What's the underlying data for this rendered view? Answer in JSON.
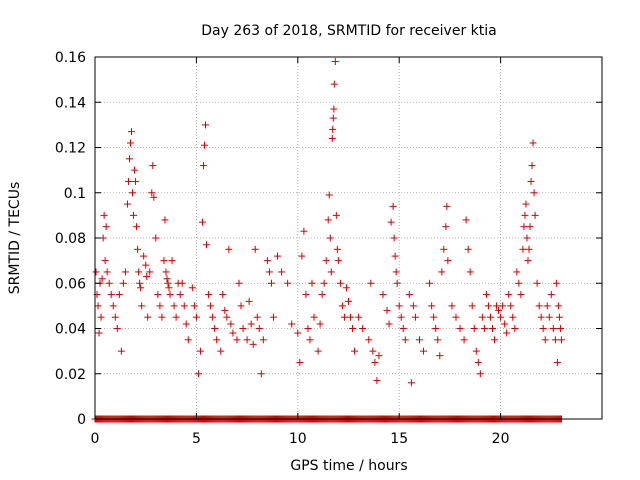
{
  "chart_data": {
    "type": "scatter",
    "title": "Day 263 of 2018, SRMTID for receiver ktia",
    "xlabel": "GPS time / hours",
    "ylabel": "SRMTID / TECUs",
    "xlim": [
      0,
      25
    ],
    "ylim": [
      0,
      0.16
    ],
    "xticks": [
      0,
      5,
      10,
      15,
      20
    ],
    "xtick_labels": [
      "0",
      "5",
      "10",
      "15",
      "20"
    ],
    "yticks": [
      0,
      0.02,
      0.04,
      0.06,
      0.08,
      0.1,
      0.12,
      0.14,
      0.16
    ],
    "ytick_labels": [
      "0",
      "0.02",
      "0.04",
      "0.06",
      "0.08",
      "0.1",
      "0.12",
      "0.14",
      "0.16"
    ],
    "grid": true,
    "marker": "+",
    "color": "#d40000",
    "series": [
      {
        "name": "SRMTID",
        "points": [
          [
            0.05,
            0.065
          ],
          [
            0.1,
            0.055
          ],
          [
            0.15,
            0.05
          ],
          [
            0.2,
            0.038
          ],
          [
            0.25,
            0.06
          ],
          [
            0.3,
            0.045
          ],
          [
            0.35,
            0.062
          ],
          [
            0.4,
            0.08
          ],
          [
            0.45,
            0.09
          ],
          [
            0.5,
            0.07
          ],
          [
            0.55,
            0.085
          ],
          [
            0.6,
            0.065
          ],
          [
            0.7,
            0.06
          ],
          [
            0.8,
            0.055
          ],
          [
            0.9,
            0.05
          ],
          [
            1.0,
            0.045
          ],
          [
            1.1,
            0.04
          ],
          [
            1.2,
            0.055
          ],
          [
            1.3,
            0.03
          ],
          [
            1.4,
            0.06
          ],
          [
            1.5,
            0.065
          ],
          [
            1.6,
            0.095
          ],
          [
            1.65,
            0.105
          ],
          [
            1.7,
            0.115
          ],
          [
            1.75,
            0.122
          ],
          [
            1.8,
            0.127
          ],
          [
            1.85,
            0.1
          ],
          [
            1.9,
            0.09
          ],
          [
            1.95,
            0.11
          ],
          [
            2.0,
            0.105
          ],
          [
            2.05,
            0.085
          ],
          [
            2.1,
            0.075
          ],
          [
            2.15,
            0.065
          ],
          [
            2.2,
            0.06
          ],
          [
            2.25,
            0.058
          ],
          [
            2.3,
            0.05
          ],
          [
            2.4,
            0.072
          ],
          [
            2.5,
            0.068
          ],
          [
            2.55,
            0.063
          ],
          [
            2.6,
            0.045
          ],
          [
            2.7,
            0.065
          ],
          [
            2.8,
            0.1
          ],
          [
            2.85,
            0.112
          ],
          [
            2.9,
            0.098
          ],
          [
            3.0,
            0.08
          ],
          [
            3.1,
            0.055
          ],
          [
            3.2,
            0.05
          ],
          [
            3.3,
            0.045
          ],
          [
            3.4,
            0.07
          ],
          [
            3.45,
            0.088
          ],
          [
            3.5,
            0.065
          ],
          [
            3.55,
            0.062
          ],
          [
            3.6,
            0.06
          ],
          [
            3.65,
            0.058
          ],
          [
            3.7,
            0.055
          ],
          [
            3.8,
            0.07
          ],
          [
            3.9,
            0.05
          ],
          [
            4.0,
            0.045
          ],
          [
            4.1,
            0.06
          ],
          [
            4.2,
            0.055
          ],
          [
            4.3,
            0.06
          ],
          [
            4.4,
            0.05
          ],
          [
            4.5,
            0.042
          ],
          [
            4.6,
            0.035
          ],
          [
            4.8,
            0.058
          ],
          [
            4.9,
            0.05
          ],
          [
            5.0,
            0.045
          ],
          [
            5.1,
            0.02
          ],
          [
            5.2,
            0.03
          ],
          [
            5.3,
            0.087
          ],
          [
            5.35,
            0.112
          ],
          [
            5.4,
            0.121
          ],
          [
            5.45,
            0.13
          ],
          [
            5.5,
            0.077
          ],
          [
            5.6,
            0.055
          ],
          [
            5.7,
            0.05
          ],
          [
            5.8,
            0.045
          ],
          [
            5.9,
            0.04
          ],
          [
            6.0,
            0.035
          ],
          [
            6.2,
            0.03
          ],
          [
            6.3,
            0.055
          ],
          [
            6.4,
            0.048
          ],
          [
            6.5,
            0.045
          ],
          [
            6.6,
            0.075
          ],
          [
            6.7,
            0.042
          ],
          [
            6.8,
            0.038
          ],
          [
            7.0,
            0.035
          ],
          [
            7.1,
            0.06
          ],
          [
            7.2,
            0.05
          ],
          [
            7.3,
            0.04
          ],
          [
            7.5,
            0.035
          ],
          [
            7.6,
            0.052
          ],
          [
            7.7,
            0.042
          ],
          [
            7.8,
            0.033
          ],
          [
            7.9,
            0.075
          ],
          [
            8.0,
            0.045
          ],
          [
            8.1,
            0.04
          ],
          [
            8.2,
            0.02
          ],
          [
            8.3,
            0.035
          ],
          [
            8.5,
            0.07
          ],
          [
            8.6,
            0.065
          ],
          [
            8.7,
            0.06
          ],
          [
            8.8,
            0.045
          ],
          [
            9.0,
            0.072
          ],
          [
            9.2,
            0.065
          ],
          [
            9.5,
            0.06
          ],
          [
            9.7,
            0.042
          ],
          [
            10.0,
            0.038
          ],
          [
            10.1,
            0.025
          ],
          [
            10.2,
            0.072
          ],
          [
            10.3,
            0.083
          ],
          [
            10.4,
            0.055
          ],
          [
            10.5,
            0.04
          ],
          [
            10.6,
            0.035
          ],
          [
            10.7,
            0.06
          ],
          [
            10.8,
            0.045
          ],
          [
            11.0,
            0.03
          ],
          [
            11.1,
            0.042
          ],
          [
            11.2,
            0.055
          ],
          [
            11.3,
            0.06
          ],
          [
            11.4,
            0.07
          ],
          [
            11.5,
            0.088
          ],
          [
            11.55,
            0.099
          ],
          [
            11.6,
            0.08
          ],
          [
            11.65,
            0.065
          ],
          [
            11.7,
            0.124
          ],
          [
            11.72,
            0.128
          ],
          [
            11.75,
            0.133
          ],
          [
            11.78,
            0.137
          ],
          [
            11.8,
            0.148
          ],
          [
            11.85,
            0.158
          ],
          [
            11.9,
            0.09
          ],
          [
            11.95,
            0.075
          ],
          [
            12.0,
            0.07
          ],
          [
            12.1,
            0.06
          ],
          [
            12.2,
            0.05
          ],
          [
            12.3,
            0.045
          ],
          [
            12.4,
            0.058
          ],
          [
            12.5,
            0.052
          ],
          [
            12.6,
            0.045
          ],
          [
            12.7,
            0.04
          ],
          [
            12.8,
            0.03
          ],
          [
            13.0,
            0.045
          ],
          [
            13.2,
            0.04
          ],
          [
            13.5,
            0.035
          ],
          [
            13.6,
            0.06
          ],
          [
            13.7,
            0.03
          ],
          [
            13.8,
            0.025
          ],
          [
            13.9,
            0.017
          ],
          [
            14.0,
            0.028
          ],
          [
            14.2,
            0.055
          ],
          [
            14.4,
            0.048
          ],
          [
            14.5,
            0.042
          ],
          [
            14.6,
            0.087
          ],
          [
            14.7,
            0.094
          ],
          [
            14.75,
            0.08
          ],
          [
            14.8,
            0.072
          ],
          [
            14.85,
            0.065
          ],
          [
            14.9,
            0.06
          ],
          [
            15.0,
            0.05
          ],
          [
            15.1,
            0.045
          ],
          [
            15.2,
            0.04
          ],
          [
            15.3,
            0.035
          ],
          [
            15.5,
            0.055
          ],
          [
            15.6,
            0.016
          ],
          [
            15.7,
            0.05
          ],
          [
            15.8,
            0.045
          ],
          [
            16.0,
            0.035
          ],
          [
            16.2,
            0.03
          ],
          [
            16.5,
            0.06
          ],
          [
            16.6,
            0.05
          ],
          [
            16.7,
            0.045
          ],
          [
            16.8,
            0.04
          ],
          [
            16.9,
            0.035
          ],
          [
            17.0,
            0.028
          ],
          [
            17.1,
            0.065
          ],
          [
            17.2,
            0.075
          ],
          [
            17.3,
            0.085
          ],
          [
            17.35,
            0.094
          ],
          [
            17.4,
            0.07
          ],
          [
            17.6,
            0.05
          ],
          [
            17.8,
            0.045
          ],
          [
            18.0,
            0.04
          ],
          [
            18.2,
            0.035
          ],
          [
            18.3,
            0.088
          ],
          [
            18.4,
            0.075
          ],
          [
            18.5,
            0.065
          ],
          [
            18.6,
            0.05
          ],
          [
            18.7,
            0.04
          ],
          [
            18.8,
            0.03
          ],
          [
            18.9,
            0.025
          ],
          [
            19.0,
            0.02
          ],
          [
            19.1,
            0.045
          ],
          [
            19.2,
            0.04
          ],
          [
            19.3,
            0.055
          ],
          [
            19.4,
            0.05
          ],
          [
            19.5,
            0.045
          ],
          [
            19.6,
            0.04
          ],
          [
            19.7,
            0.035
          ],
          [
            19.8,
            0.05
          ],
          [
            19.9,
            0.048
          ],
          [
            20.0,
            0.045
          ],
          [
            20.1,
            0.05
          ],
          [
            20.2,
            0.042
          ],
          [
            20.3,
            0.038
          ],
          [
            20.4,
            0.055
          ],
          [
            20.5,
            0.05
          ],
          [
            20.6,
            0.045
          ],
          [
            20.7,
            0.04
          ],
          [
            20.8,
            0.065
          ],
          [
            20.9,
            0.06
          ],
          [
            21.0,
            0.055
          ],
          [
            21.1,
            0.075
          ],
          [
            21.15,
            0.085
          ],
          [
            21.2,
            0.09
          ],
          [
            21.25,
            0.095
          ],
          [
            21.3,
            0.08
          ],
          [
            21.35,
            0.07
          ],
          [
            21.4,
            0.075
          ],
          [
            21.45,
            0.085
          ],
          [
            21.5,
            0.105
          ],
          [
            21.55,
            0.112
          ],
          [
            21.6,
            0.122
          ],
          [
            21.65,
            0.1
          ],
          [
            21.7,
            0.09
          ],
          [
            21.8,
            0.06
          ],
          [
            21.9,
            0.05
          ],
          [
            22.0,
            0.045
          ],
          [
            22.1,
            0.04
          ],
          [
            22.2,
            0.035
          ],
          [
            22.3,
            0.05
          ],
          [
            22.4,
            0.045
          ],
          [
            22.5,
            0.055
          ],
          [
            22.6,
            0.04
          ],
          [
            22.7,
            0.035
          ],
          [
            22.75,
            0.06
          ],
          [
            22.8,
            0.025
          ],
          [
            22.85,
            0.05
          ],
          [
            22.9,
            0.045
          ],
          [
            22.95,
            0.04
          ],
          [
            23.0,
            0.035
          ]
        ]
      }
    ],
    "baseline": {
      "name": "zero-value samples",
      "y": 0,
      "x_range": [
        0,
        23
      ]
    }
  }
}
